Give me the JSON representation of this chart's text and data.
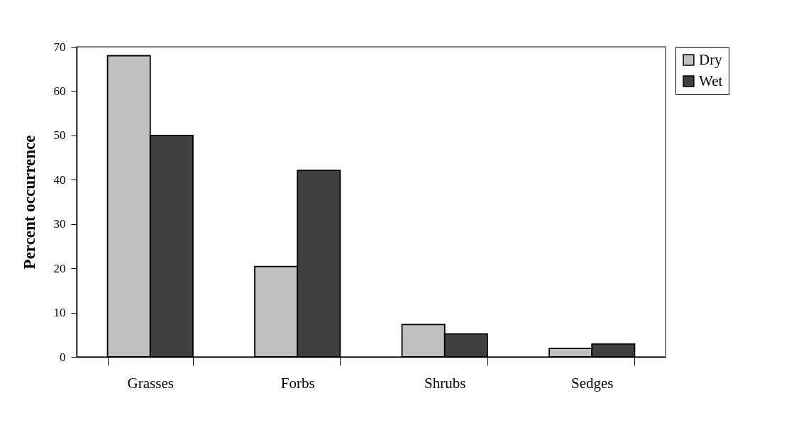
{
  "chart_data": {
    "type": "bar",
    "ylabel": "Percent occurrence",
    "categories": [
      "Grasses",
      "Forbs",
      "Shrubs",
      "Sedges"
    ],
    "series": [
      {
        "name": "Dry",
        "color": "#c0c0c0",
        "values": [
          68,
          20.4,
          7.3,
          1.9
        ]
      },
      {
        "name": "Wet",
        "color": "#404040",
        "values": [
          50,
          42.1,
          5.2,
          2.9
        ]
      }
    ],
    "ylim": [
      0,
      70
    ],
    "yticks": [
      0,
      10,
      20,
      30,
      40,
      50,
      60,
      70
    ],
    "grid": false,
    "legend": "right"
  }
}
